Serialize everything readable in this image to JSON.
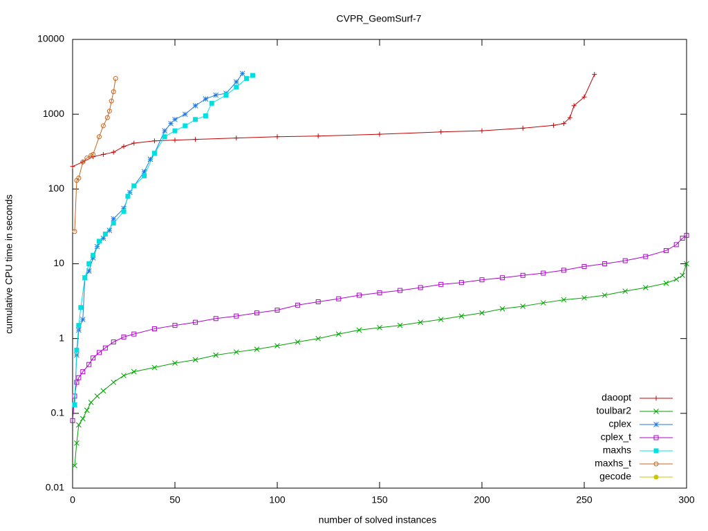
{
  "chart_data": {
    "type": "line",
    "title": "CVPR_GeomSurf-7",
    "x_label": "number of solved instances",
    "y_label": "cumulative CPU time in seconds",
    "log_y": true,
    "grid": false,
    "legend": "lower right",
    "xlim": [
      0,
      300
    ],
    "xticks": [
      0,
      50,
      100,
      150,
      200,
      250,
      300
    ],
    "ylim": [
      0.01,
      10000
    ],
    "yticks": [
      0.01,
      0.1,
      1,
      10,
      100,
      1000,
      10000
    ],
    "series": [
      {
        "name": "daoopt",
        "color": "#c00000",
        "x": [
          0,
          5,
          10,
          15,
          20,
          25,
          30,
          40,
          50,
          60,
          80,
          100,
          120,
          150,
          180,
          200,
          220,
          235,
          240,
          243,
          245,
          250,
          255
        ],
        "values": [
          200,
          230,
          270,
          290,
          310,
          370,
          410,
          440,
          450,
          460,
          480,
          500,
          510,
          540,
          580,
          600,
          650,
          710,
          750,
          900,
          1300,
          1700,
          3400
        ]
      },
      {
        "name": "toulbar2",
        "color": "#00a000",
        "x": [
          1,
          2,
          3,
          5,
          7,
          9,
          12,
          15,
          20,
          25,
          30,
          40,
          50,
          60,
          70,
          80,
          90,
          100,
          110,
          120,
          130,
          140,
          150,
          160,
          170,
          180,
          190,
          200,
          210,
          220,
          230,
          240,
          250,
          260,
          270,
          280,
          290,
          295,
          298,
          300
        ],
        "values": [
          0.02,
          0.04,
          0.07,
          0.085,
          0.11,
          0.14,
          0.17,
          0.2,
          0.26,
          0.32,
          0.36,
          0.41,
          0.47,
          0.52,
          0.6,
          0.66,
          0.72,
          0.8,
          0.9,
          1.0,
          1.15,
          1.3,
          1.4,
          1.5,
          1.65,
          1.8,
          2.0,
          2.2,
          2.5,
          2.7,
          3.0,
          3.3,
          3.5,
          3.8,
          4.3,
          4.8,
          5.5,
          6.2,
          7,
          10
        ]
      },
      {
        "name": "cplex",
        "color": "#1e78e0",
        "x": [
          1,
          2,
          3,
          5,
          6,
          8,
          10,
          12,
          15,
          18,
          20,
          25,
          28,
          30,
          35,
          38,
          40,
          45,
          48,
          50,
          55,
          60,
          65,
          70,
          75,
          80,
          83
        ],
        "values": [
          0.13,
          0.6,
          1.3,
          1.8,
          6.5,
          8,
          12,
          17,
          22,
          28,
          40,
          55,
          90,
          110,
          170,
          250,
          300,
          600,
          750,
          850,
          1000,
          1300,
          1600,
          1800,
          1900,
          2700,
          3500
        ]
      },
      {
        "name": "cplex_t",
        "color": "#b000d0",
        "x": [
          0,
          1,
          2,
          3,
          5,
          8,
          10,
          13,
          16,
          20,
          25,
          30,
          40,
          50,
          60,
          70,
          80,
          90,
          100,
          110,
          120,
          130,
          140,
          150,
          160,
          170,
          180,
          190,
          200,
          210,
          220,
          230,
          240,
          250,
          260,
          270,
          280,
          290,
          295,
          298,
          300
        ],
        "values": [
          0.08,
          0.17,
          0.26,
          0.3,
          0.36,
          0.45,
          0.55,
          0.65,
          0.75,
          0.9,
          1.05,
          1.15,
          1.35,
          1.5,
          1.65,
          1.85,
          2.0,
          2.2,
          2.4,
          2.8,
          3.1,
          3.4,
          3.8,
          4.1,
          4.4,
          4.8,
          5.3,
          5.6,
          6.1,
          6.5,
          7.0,
          7.5,
          8.2,
          9.2,
          10,
          11,
          12.5,
          15,
          18,
          22,
          24
        ]
      },
      {
        "name": "maxhs",
        "color": "#00e0e0",
        "x": [
          1,
          2,
          3,
          4,
          6,
          8,
          10,
          13,
          16,
          20,
          25,
          27,
          30,
          35,
          40,
          45,
          50,
          55,
          60,
          65,
          68,
          75,
          80,
          85,
          88
        ],
        "values": [
          0.13,
          0.7,
          1.5,
          2.6,
          6.5,
          10,
          13,
          20,
          25,
          35,
          50,
          80,
          110,
          150,
          300,
          500,
          600,
          700,
          850,
          950,
          1400,
          1800,
          2300,
          3000,
          3300
        ]
      },
      {
        "name": "maxhs_t",
        "color": "#c8641e",
        "x": [
          1,
          2,
          3,
          5,
          7,
          9,
          10,
          13,
          15,
          17,
          18,
          19,
          20,
          21
        ],
        "values": [
          27,
          130,
          140,
          230,
          260,
          280,
          290,
          500,
          700,
          900,
          1100,
          1500,
          2000,
          3000
        ]
      },
      {
        "name": "gecode",
        "color": "#c8c800",
        "x": [],
        "values": []
      }
    ]
  }
}
